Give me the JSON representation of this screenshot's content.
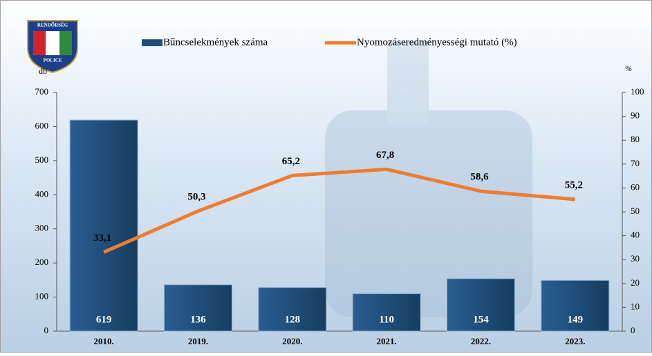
{
  "logo": {
    "top": "RENDŐRSÉG",
    "bottom": "POLICE"
  },
  "chart_data": {
    "type": "bar",
    "categories": [
      "2010.",
      "2019.",
      "2020.",
      "2021.",
      "2022.",
      "2023."
    ],
    "series": [
      {
        "name": "Bűncselekmények száma",
        "type": "bar",
        "color": "#1f4e79",
        "values": [
          619,
          136,
          128,
          110,
          154,
          149
        ]
      },
      {
        "name": "Nyomozáseredményességi mutató (%)",
        "type": "line",
        "axis": "y2",
        "color": "#ed7d31",
        "values": [
          33.1,
          50.3,
          65.2,
          67.8,
          58.6,
          55.2
        ],
        "value_labels": [
          "33,1",
          "50,3",
          "65,2",
          "67,8",
          "58,6",
          "55,2"
        ]
      }
    ],
    "ylabel": "db",
    "y2label": "%",
    "ylim": [
      0,
      700
    ],
    "yticks": [
      0,
      100,
      200,
      300,
      400,
      500,
      600,
      700
    ],
    "y2lim": [
      0,
      100
    ],
    "y2ticks": [
      0,
      10,
      20,
      30,
      40,
      50,
      60,
      70,
      80,
      90,
      100
    ],
    "grid": false
  }
}
